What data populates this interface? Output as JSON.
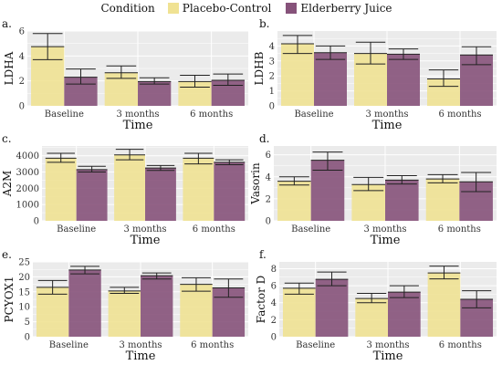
{
  "legend": {
    "title": "Condition",
    "items": [
      {
        "label": "Placebo-Control",
        "color": "#f0e293"
      },
      {
        "label": "Elderberry Juice",
        "color": "#86527a"
      }
    ]
  },
  "style": {
    "panel_bg": "#ebebeb",
    "grid_color": "#ffffff",
    "errorbar_color": "#222222",
    "bar_opacity": 0.9
  },
  "chart_data": [
    {
      "type": "bar",
      "panel_label": "a.",
      "ylabel": "LDHA",
      "xlabel": "Time",
      "categories": [
        "Baseline",
        "3 months",
        "6 months"
      ],
      "ylim": [
        0,
        6
      ],
      "yticks": [
        0,
        2,
        4,
        6
      ],
      "series": [
        {
          "name": "Placebo-Control",
          "values": [
            4.75,
            2.65,
            1.95
          ],
          "error_low": [
            3.7,
            2.2,
            1.5
          ],
          "error_high": [
            5.8,
            3.2,
            2.45
          ]
        },
        {
          "name": "Elderberry Juice",
          "values": [
            2.3,
            1.95,
            2.05
          ],
          "error_low": [
            1.75,
            1.75,
            1.65
          ],
          "error_high": [
            2.95,
            2.25,
            2.55
          ]
        }
      ]
    },
    {
      "type": "bar",
      "panel_label": "b.",
      "ylabel": "LDHB",
      "xlabel": "Time",
      "categories": [
        "Baseline",
        "3 months",
        "6 months"
      ],
      "ylim": [
        0,
        5
      ],
      "yticks": [
        0,
        1,
        2,
        3,
        4
      ],
      "series": [
        {
          "name": "Placebo-Control",
          "values": [
            4.15,
            3.5,
            1.8
          ],
          "error_low": [
            3.5,
            2.8,
            1.3
          ],
          "error_high": [
            4.7,
            4.25,
            2.4
          ]
        },
        {
          "name": "Elderberry Juice",
          "values": [
            3.55,
            3.45,
            3.4
          ],
          "error_low": [
            3.1,
            3.1,
            2.75
          ],
          "error_high": [
            4.0,
            3.8,
            3.95
          ]
        }
      ]
    },
    {
      "type": "bar",
      "panel_label": "c.",
      "ylabel": "A2M",
      "xlabel": "Time",
      "categories": [
        "Baseline",
        "3 months",
        "6 months"
      ],
      "ylim": [
        0,
        4600
      ],
      "yticks": [
        0,
        1000,
        2000,
        3000,
        4000
      ],
      "series": [
        {
          "name": "Placebo-Control",
          "values": [
            3850,
            4050,
            3850
          ],
          "error_low": [
            3600,
            3750,
            3500
          ],
          "error_high": [
            4150,
            4400,
            4150
          ]
        },
        {
          "name": "Elderberry Juice",
          "values": [
            3150,
            3250,
            3600
          ],
          "error_low": [
            3000,
            3100,
            3450
          ],
          "error_high": [
            3350,
            3400,
            3750
          ]
        }
      ]
    },
    {
      "type": "bar",
      "panel_label": "d.",
      "ylabel": "Vasorin",
      "xlabel": "Time",
      "categories": [
        "Baseline",
        "3 months",
        "6 months"
      ],
      "ylim": [
        0,
        6.8
      ],
      "yticks": [
        0,
        2,
        4,
        6
      ],
      "series": [
        {
          "name": "Placebo-Control",
          "values": [
            3.6,
            3.3,
            3.8
          ],
          "error_low": [
            3.25,
            2.75,
            3.45
          ],
          "error_high": [
            4.0,
            3.95,
            4.2
          ]
        },
        {
          "name": "Elderberry Juice",
          "values": [
            5.5,
            3.7,
            3.55
          ],
          "error_low": [
            4.6,
            3.35,
            2.65
          ],
          "error_high": [
            6.25,
            4.1,
            4.4
          ]
        }
      ]
    },
    {
      "type": "bar",
      "panel_label": "e.",
      "ylabel": "PCYOX1",
      "xlabel": "Time",
      "categories": [
        "Baseline",
        "3 months",
        "6 months"
      ],
      "ylim": [
        0,
        25
      ],
      "yticks": [
        0,
        5,
        10,
        15,
        20,
        25
      ],
      "series": [
        {
          "name": "Placebo-Control",
          "values": [
            16.5,
            15.3,
            17.5
          ],
          "error_low": [
            14.2,
            14.5,
            15.2
          ],
          "error_high": [
            18.8,
            16.5,
            19.7
          ]
        },
        {
          "name": "Elderberry Juice",
          "values": [
            22.3,
            20.4,
            16.3
          ],
          "error_low": [
            21.0,
            19.3,
            13.2
          ],
          "error_high": [
            23.5,
            21.3,
            19.3
          ]
        }
      ]
    },
    {
      "type": "bar",
      "panel_label": "f.",
      "ylabel": "Factor D",
      "xlabel": "Time",
      "categories": [
        "Baseline",
        "3 months",
        "6 months"
      ],
      "ylim": [
        0,
        8.8
      ],
      "yticks": [
        0,
        2,
        4,
        6,
        8
      ],
      "series": [
        {
          "name": "Placebo-Control",
          "values": [
            5.7,
            4.5,
            7.5
          ],
          "error_low": [
            5.0,
            4.0,
            6.8
          ],
          "error_high": [
            6.3,
            5.1,
            8.3
          ]
        },
        {
          "name": "Elderberry Juice",
          "values": [
            6.75,
            5.25,
            4.4
          ],
          "error_low": [
            6.0,
            4.6,
            3.4
          ],
          "error_high": [
            7.6,
            6.0,
            5.4
          ]
        }
      ]
    }
  ]
}
